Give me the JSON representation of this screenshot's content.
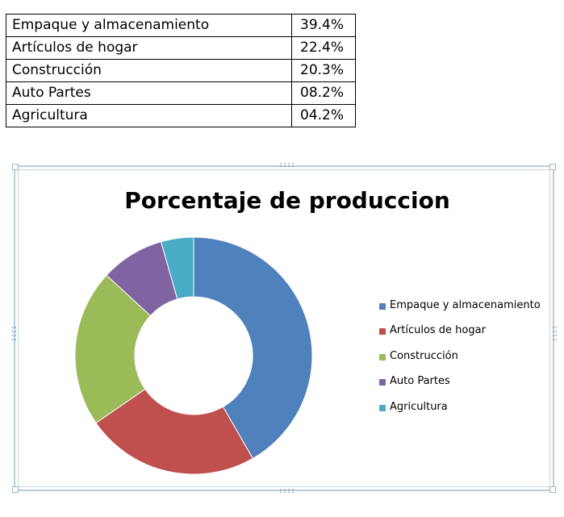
{
  "table": {
    "rows": [
      {
        "label": "Empaque y almacenamiento",
        "value": "39.4%"
      },
      {
        "label": "Artículos de hogar",
        "value": "22.4%"
      },
      {
        "label": "Construcción",
        "value": "20.3%"
      },
      {
        "label": "Auto Partes",
        "value": "08.2%"
      },
      {
        "label": "Agricultura",
        "value": "04.2%"
      }
    ]
  },
  "chart_data": {
    "type": "pie",
    "variant": "doughnut",
    "title": "Porcentaje de produccion",
    "legend_position": "right",
    "categories": [
      "Empaque y almacenamiento",
      "Artículos de hogar",
      "Construcción",
      "Auto Partes",
      "Agricultura"
    ],
    "values": [
      39.4,
      22.4,
      20.3,
      8.2,
      4.2
    ],
    "colors": [
      "#4f81bd",
      "#c0504d",
      "#9bbb59",
      "#8064a2",
      "#4bacc6"
    ]
  }
}
